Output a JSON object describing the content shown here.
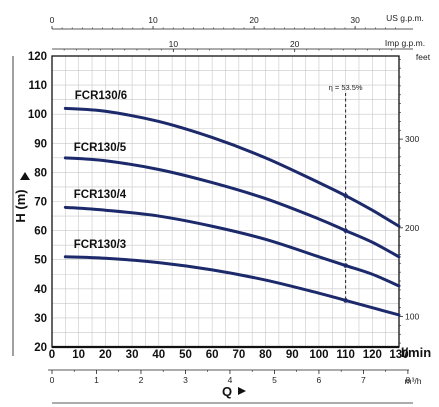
{
  "chart_data": {
    "type": "line",
    "title": "",
    "xlabel": "l/min",
    "ylabel": "H (m)",
    "xlim": [
      0,
      130
    ],
    "ylim": [
      20,
      120
    ],
    "x_ticks": [
      0,
      10,
      20,
      30,
      40,
      50,
      60,
      70,
      80,
      90,
      100,
      110,
      120,
      130
    ],
    "y_ticks": [
      20,
      30,
      40,
      50,
      60,
      70,
      80,
      90,
      100,
      110,
      120
    ],
    "grid": true,
    "series": [
      {
        "name": "FCR130/6",
        "x": [
          5,
          20,
          40,
          60,
          80,
          100,
          110,
          120,
          130
        ],
        "y": [
          102,
          101,
          97.5,
          92,
          85,
          76.5,
          72,
          67,
          61.5
        ]
      },
      {
        "name": "FCR130/5",
        "x": [
          5,
          20,
          40,
          60,
          80,
          100,
          110,
          120,
          130
        ],
        "y": [
          85,
          84,
          81,
          76.5,
          71,
          64,
          60,
          56,
          51
        ]
      },
      {
        "name": "FCR130/4",
        "x": [
          5,
          20,
          40,
          60,
          80,
          100,
          110,
          120,
          130
        ],
        "y": [
          68,
          67,
          65,
          61.5,
          57,
          51,
          48,
          45,
          41
        ]
      },
      {
        "name": "FCR130/3",
        "x": [
          5,
          20,
          40,
          60,
          80,
          100,
          110,
          120,
          130
        ],
        "y": [
          51,
          50.5,
          49,
          46.5,
          43,
          38.5,
          36,
          33.5,
          31
        ]
      }
    ],
    "efficiency_line": {
      "label": "η = 53.5%",
      "x": 110,
      "points_y": [
        72,
        60,
        48,
        36
      ]
    },
    "secondary_axes": {
      "us_gpm": {
        "unit": "US g.p.m.",
        "ticks": [
          0,
          10,
          20,
          30
        ]
      },
      "imp_gpm": {
        "unit": "Imp g.p.m.",
        "ticks": [
          10,
          20
        ]
      },
      "m3h": {
        "unit": "m³/h",
        "ticks": [
          0,
          1,
          2,
          3,
          4,
          5,
          6,
          7,
          8
        ]
      },
      "feet": {
        "unit": "feet",
        "ticks": [
          100,
          200,
          300
        ]
      }
    },
    "bottom_title": "Q"
  }
}
